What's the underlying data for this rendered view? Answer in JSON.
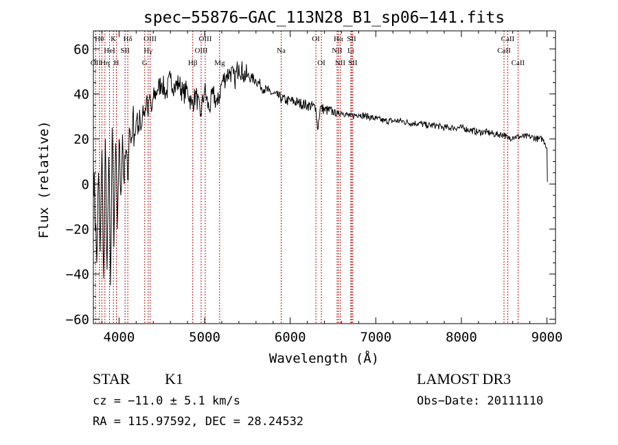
{
  "chart_data": {
    "type": "line",
    "title": "spec−55876−GAC_113N28_B1_sp06−141.fits",
    "xlabel": "Wavelength (Å)",
    "ylabel": "Flux (relative)",
    "xlim": [
      3700,
      9100
    ],
    "ylim": [
      -62,
      68
    ],
    "xticks": [
      {
        "value": 4000,
        "label": "4000"
      },
      {
        "value": 5000,
        "label": "5000"
      },
      {
        "value": 6000,
        "label": "6000"
      },
      {
        "value": 7000,
        "label": "7000"
      },
      {
        "value": 8000,
        "label": "8000"
      },
      {
        "value": 9000,
        "label": "9000"
      }
    ],
    "yticks": [
      {
        "value": 60,
        "label": "60"
      },
      {
        "value": 40,
        "label": "40"
      },
      {
        "value": 20,
        "label": "20"
      },
      {
        "value": 0,
        "label": "0"
      },
      {
        "value": -20,
        "label": "−20"
      },
      {
        "value": -40,
        "label": "−40"
      },
      {
        "value": -60,
        "label": "−60"
      }
    ],
    "series": [
      {
        "name": "flux",
        "color": "#000000",
        "x": [
          3700,
          3740,
          3760,
          3780,
          3800,
          3820,
          3840,
          3860,
          3880,
          3900,
          3920,
          3940,
          3960,
          3980,
          4000,
          4020,
          4040,
          4060,
          4080,
          4100,
          4120,
          4140,
          4160,
          4180,
          4200,
          4220,
          4240,
          4260,
          4280,
          4300,
          4320,
          4340,
          4360,
          4380,
          4400,
          4450,
          4500,
          4550,
          4600,
          4650,
          4700,
          4750,
          4800,
          4850,
          4900,
          4950,
          5000,
          5050,
          5100,
          5150,
          5200,
          5250,
          5300,
          5350,
          5400,
          5450,
          5500,
          5550,
          5600,
          5650,
          5700,
          5750,
          5800,
          5850,
          5900,
          5950,
          6000,
          6100,
          6200,
          6300,
          6320,
          6350,
          6400,
          6500,
          6560,
          6600,
          6700,
          6800,
          6900,
          7000,
          7100,
          7200,
          7300,
          7400,
          7500,
          7600,
          7700,
          7800,
          7900,
          8000,
          8100,
          8200,
          8300,
          8400,
          8500,
          8540,
          8600,
          8700,
          8800,
          8900,
          8950,
          8980,
          9000,
          9005
        ],
        "y": [
          10,
          -35,
          5,
          -30,
          15,
          -42,
          20,
          -38,
          12,
          -45,
          25,
          -28,
          18,
          -20,
          20,
          -5,
          22,
          0,
          15,
          2,
          25,
          18,
          30,
          22,
          28,
          22,
          33,
          25,
          35,
          30,
          38,
          30,
          40,
          32,
          38,
          42,
          45,
          40,
          47,
          43,
          45,
          40,
          42,
          35,
          40,
          30,
          42,
          33,
          40,
          35,
          45,
          48,
          50,
          46,
          53,
          49,
          48,
          47,
          46,
          44,
          42,
          41,
          40,
          39,
          38,
          37,
          37,
          36,
          35,
          34,
          24,
          34,
          33,
          32,
          31,
          32,
          30,
          31,
          30,
          29,
          28,
          28,
          28,
          27,
          27,
          26,
          26,
          25,
          25,
          25,
          24,
          23,
          23,
          22,
          22,
          20,
          21,
          21,
          21,
          20,
          20,
          18,
          16,
          1
        ]
      }
    ],
    "line_markers": {
      "color": "#c00000",
      "lines": [
        {
          "value": 3727,
          "label": "OII",
          "row": 2
        },
        {
          "value": 3770,
          "label": "Hθ",
          "row": 0
        },
        {
          "value": 3798,
          "label": "",
          "row": 0
        },
        {
          "value": 3835,
          "label": "Hη",
          "row": 2
        },
        {
          "value": 3889,
          "label": "HeI",
          "row": 1
        },
        {
          "value": 3934,
          "label": "K",
          "row": 0
        },
        {
          "value": 3969,
          "label": "H",
          "row": 2
        },
        {
          "value": 4070,
          "label": "SII",
          "row": 1
        },
        {
          "value": 4102,
          "label": "Hδ",
          "row": 0
        },
        {
          "value": 4300,
          "label": "G",
          "row": 2
        },
        {
          "value": 4340,
          "label": "Hγ",
          "row": 1
        },
        {
          "value": 4363,
          "label": "OIII",
          "row": 0
        },
        {
          "value": 4861,
          "label": "Hβ",
          "row": 2
        },
        {
          "value": 4959,
          "label": "OIII",
          "row": 1
        },
        {
          "value": 5007,
          "label": "OIII",
          "row": 0
        },
        {
          "value": 5175,
          "label": "Mg",
          "row": 2
        },
        {
          "value": 5894,
          "label": "Na",
          "row": 1
        },
        {
          "value": 6300,
          "label": "OI",
          "row": 0
        },
        {
          "value": 6364,
          "label": "OI",
          "row": 2
        },
        {
          "value": 6548,
          "label": "NII",
          "row": 1
        },
        {
          "value": 6563,
          "label": "Hα",
          "row": 0
        },
        {
          "value": 6584,
          "label": "NII",
          "row": 2
        },
        {
          "value": 6708,
          "label": "Li",
          "row": 1
        },
        {
          "value": 6717,
          "label": "SII",
          "row": 0
        },
        {
          "value": 6731,
          "label": "SII",
          "row": 2
        },
        {
          "value": 8498,
          "label": "CaII",
          "row": 1
        },
        {
          "value": 8542,
          "label": "CaII",
          "row": 0
        },
        {
          "value": 8662,
          "label": "CaII",
          "row": 2
        }
      ]
    }
  },
  "info": {
    "class": "STAR",
    "subclass": "K1",
    "survey": "LAMOST DR3",
    "cz": "cz = −11.0 ± 5.1 km/s",
    "obs_date": "Obs−Date: 20111110",
    "coords": "RA = 115.97592, DEC =  28.24532"
  }
}
